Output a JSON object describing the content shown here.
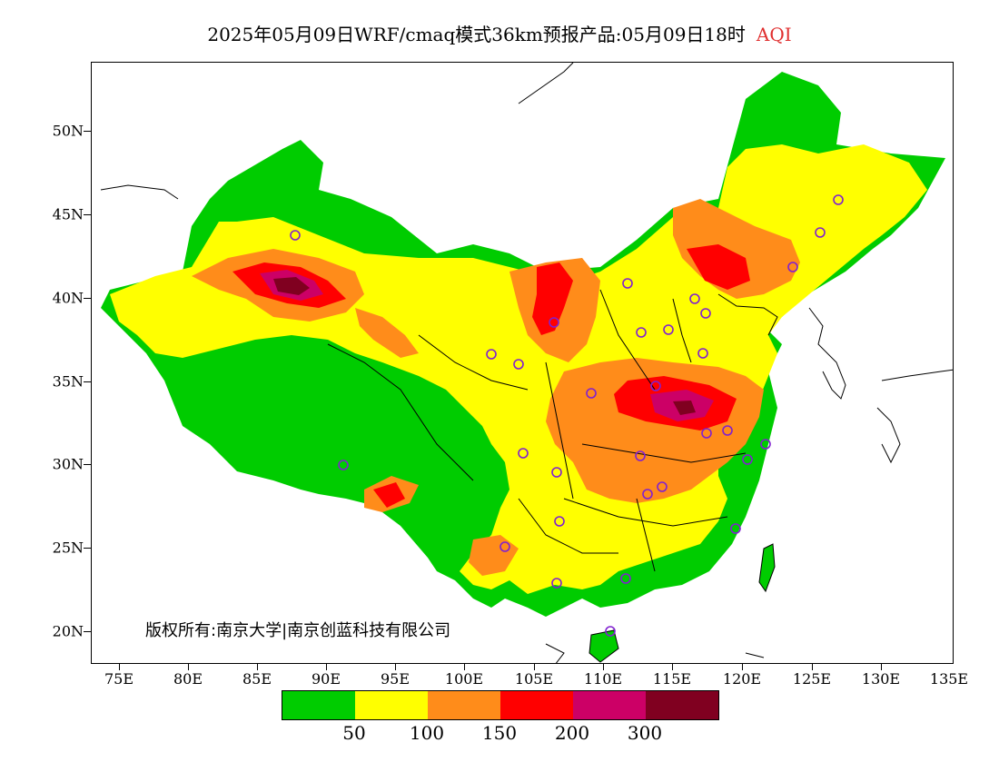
{
  "title": {
    "main": "2025年05月09日WRF/cmaq模式36km预报产品:05月09日18时",
    "product": "AQI",
    "product_color": "#e03030"
  },
  "axes": {
    "y_ticks": [
      "50N",
      "45N",
      "40N",
      "35N",
      "30N",
      "25N",
      "20N"
    ],
    "x_ticks": [
      "75E",
      "80E",
      "85E",
      "90E",
      "95E",
      "100E",
      "105E",
      "110E",
      "115E",
      "120E",
      "125E",
      "130E",
      "135E"
    ]
  },
  "copyright": "版权所有:南京大学|南京创蓝科技有限公司",
  "legend": {
    "colors": [
      "#00cc00",
      "#ffff00",
      "#ff8c1a",
      "#ff0000",
      "#cc0066",
      "#800020"
    ],
    "labels": [
      "50",
      "100",
      "150",
      "200",
      "300"
    ]
  },
  "map_colors": {
    "good": "#00cc00",
    "moderate": "#ffff00",
    "light": "#ff8c1a",
    "medium": "#ff0000",
    "heavy": "#cc0066",
    "severe": "#800020",
    "station": "#8020d0"
  }
}
